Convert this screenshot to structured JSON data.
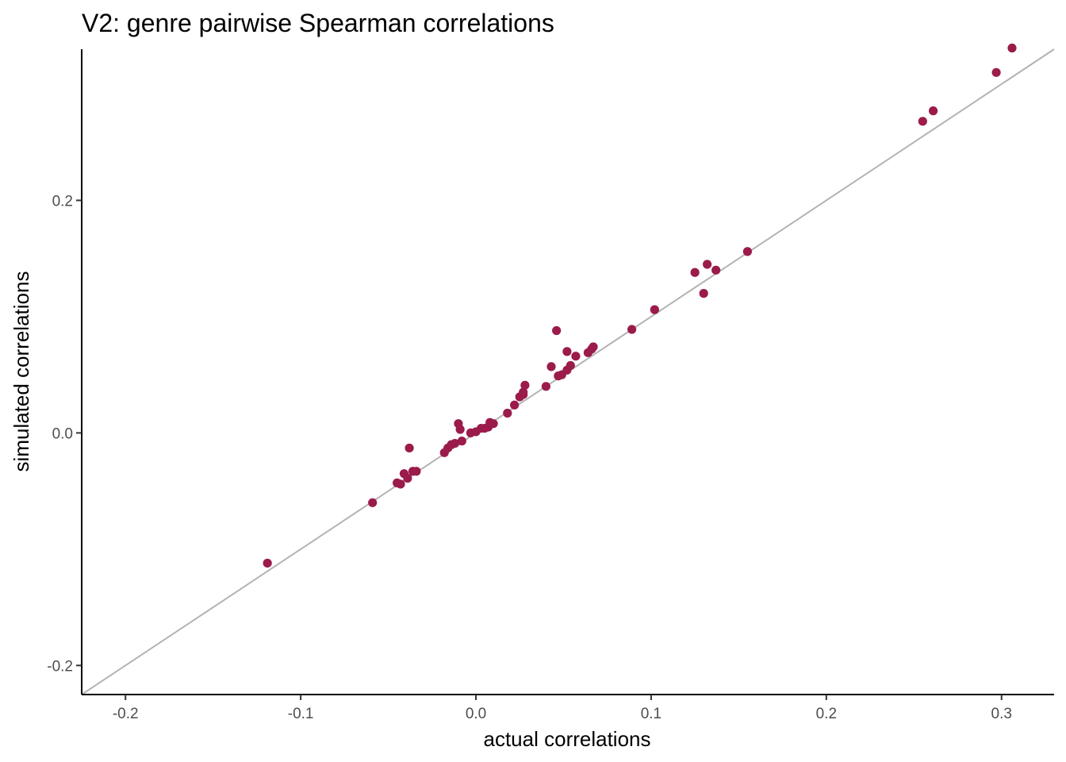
{
  "chart_data": {
    "type": "scatter",
    "title": "V2: genre pairwise Spearman correlations",
    "xlabel": "actual correlations",
    "ylabel": "simulated correlations",
    "xlim": [
      -0.225,
      0.33
    ],
    "ylim": [
      -0.225,
      0.33
    ],
    "x_ticks": [
      -0.2,
      -0.1,
      0.0,
      0.1,
      0.2,
      0.3
    ],
    "x_tick_labels": [
      "-0.2",
      "-0.1",
      "0.0",
      "0.1",
      "0.2",
      "0.3"
    ],
    "y_ticks": [
      -0.2,
      0.0,
      0.2
    ],
    "y_tick_labels": [
      "-0.2",
      "0.0",
      "0.2"
    ],
    "reference_line": "y = x",
    "grid": false,
    "colors": {
      "points": "#9B1B4B",
      "reference_line": "#b3b3b3",
      "axis": "#000000"
    },
    "points": [
      {
        "x": -0.119,
        "y": -0.112
      },
      {
        "x": -0.059,
        "y": -0.06
      },
      {
        "x": -0.045,
        "y": -0.043
      },
      {
        "x": -0.043,
        "y": -0.044
      },
      {
        "x": -0.041,
        "y": -0.035
      },
      {
        "x": -0.039,
        "y": -0.039
      },
      {
        "x": -0.038,
        "y": -0.013
      },
      {
        "x": -0.036,
        "y": -0.033
      },
      {
        "x": -0.034,
        "y": -0.033
      },
      {
        "x": -0.018,
        "y": -0.017
      },
      {
        "x": -0.016,
        "y": -0.013
      },
      {
        "x": -0.014,
        "y": -0.01
      },
      {
        "x": -0.012,
        "y": -0.009
      },
      {
        "x": -0.01,
        "y": 0.008
      },
      {
        "x": -0.009,
        "y": 0.003
      },
      {
        "x": -0.008,
        "y": -0.007
      },
      {
        "x": -0.003,
        "y": 0.0
      },
      {
        "x": 0.0,
        "y": 0.001
      },
      {
        "x": 0.003,
        "y": 0.004
      },
      {
        "x": 0.005,
        "y": 0.004
      },
      {
        "x": 0.007,
        "y": 0.005
      },
      {
        "x": 0.008,
        "y": 0.009
      },
      {
        "x": 0.01,
        "y": 0.008
      },
      {
        "x": 0.018,
        "y": 0.017
      },
      {
        "x": 0.022,
        "y": 0.024
      },
      {
        "x": 0.025,
        "y": 0.031
      },
      {
        "x": 0.027,
        "y": 0.033
      },
      {
        "x": 0.027,
        "y": 0.035
      },
      {
        "x": 0.028,
        "y": 0.041
      },
      {
        "x": 0.04,
        "y": 0.04
      },
      {
        "x": 0.043,
        "y": 0.057
      },
      {
        "x": 0.046,
        "y": 0.088
      },
      {
        "x": 0.047,
        "y": 0.049
      },
      {
        "x": 0.049,
        "y": 0.05
      },
      {
        "x": 0.052,
        "y": 0.07
      },
      {
        "x": 0.052,
        "y": 0.054
      },
      {
        "x": 0.054,
        "y": 0.058
      },
      {
        "x": 0.057,
        "y": 0.066
      },
      {
        "x": 0.064,
        "y": 0.069
      },
      {
        "x": 0.066,
        "y": 0.072
      },
      {
        "x": 0.067,
        "y": 0.074
      },
      {
        "x": 0.089,
        "y": 0.089
      },
      {
        "x": 0.102,
        "y": 0.106
      },
      {
        "x": 0.125,
        "y": 0.138
      },
      {
        "x": 0.13,
        "y": 0.12
      },
      {
        "x": 0.132,
        "y": 0.145
      },
      {
        "x": 0.137,
        "y": 0.14
      },
      {
        "x": 0.155,
        "y": 0.156
      },
      {
        "x": 0.255,
        "y": 0.268
      },
      {
        "x": 0.261,
        "y": 0.277
      },
      {
        "x": 0.297,
        "y": 0.31
      },
      {
        "x": 0.306,
        "y": 0.331
      }
    ]
  }
}
